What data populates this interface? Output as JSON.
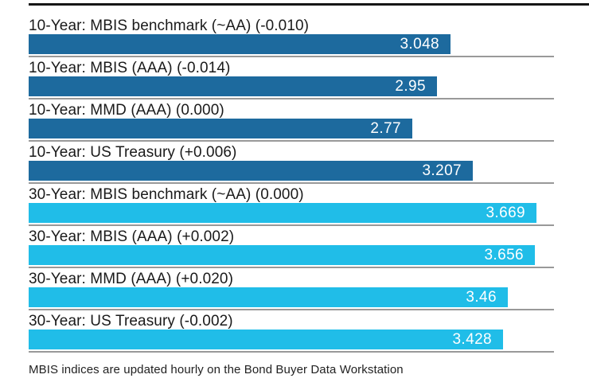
{
  "chart_data": {
    "type": "bar",
    "orientation": "horizontal",
    "title": "",
    "xlabel": "",
    "ylabel": "",
    "xlim": [
      0,
      3.8
    ],
    "grid": "row-separator-lines",
    "legend": "none",
    "categories": [
      "10-Year: MBIS benchmark (~AA) (-0.010)",
      "10-Year: MBIS (AAA) (-0.014)",
      "10-Year: MMD (AAA) (0.000)",
      "10-Year: US Treasury (+0.006)",
      "30-Year: MBIS benchmark (~AA) (0.000)",
      "30-Year: MBIS (AAA) (+0.002)",
      "30-Year: MMD (AAA) (+0.020)",
      "30-Year: US Treasury (-0.002)"
    ],
    "values": [
      3.048,
      2.95,
      2.77,
      3.207,
      3.669,
      3.656,
      3.46,
      3.428
    ],
    "bars": [
      {
        "label": "10-Year: MBIS benchmark (~AA) (-0.010)",
        "value": 3.048,
        "value_label": "3.048",
        "change": "-0.010",
        "group": "10-Year"
      },
      {
        "label": "10-Year: MBIS (AAA) (-0.014)",
        "value": 2.95,
        "value_label": "2.95",
        "change": "-0.014",
        "group": "10-Year"
      },
      {
        "label": "10-Year: MMD (AAA) (0.000)",
        "value": 2.77,
        "value_label": "2.77",
        "change": "0.000",
        "group": "10-Year"
      },
      {
        "label": "10-Year: US Treasury (+0.006)",
        "value": 3.207,
        "value_label": "3.207",
        "change": "+0.006",
        "group": "10-Year"
      },
      {
        "label": "30-Year: MBIS benchmark (~AA) (0.000)",
        "value": 3.669,
        "value_label": "3.669",
        "change": "0.000",
        "group": "30-Year"
      },
      {
        "label": "30-Year: MBIS (AAA) (+0.002)",
        "value": 3.656,
        "value_label": "3.656",
        "change": "+0.002",
        "group": "30-Year"
      },
      {
        "label": "30-Year: MMD (AAA) (+0.020)",
        "value": 3.46,
        "value_label": "3.46",
        "change": "+0.020",
        "group": "30-Year"
      },
      {
        "label": "30-Year: US Treasury (-0.002)",
        "value": 3.428,
        "value_label": "3.428",
        "change": "-0.002",
        "group": "30-Year"
      }
    ],
    "groups": {
      "10-Year": {
        "color": "#1d6a9e"
      },
      "30-Year": {
        "color": "#20bde8"
      }
    }
  },
  "footer": {
    "note": "MBIS indices are updated hourly on the Bond Buyer Data Workstation"
  },
  "colors": {
    "bar_10_year": "#1d6a9e",
    "bar_30_year": "#20bde8",
    "separator": "#999999",
    "top_rule": "#161616",
    "label_text": "#1a1a1a",
    "value_text": "#ffffff",
    "background": "#ffffff"
  }
}
